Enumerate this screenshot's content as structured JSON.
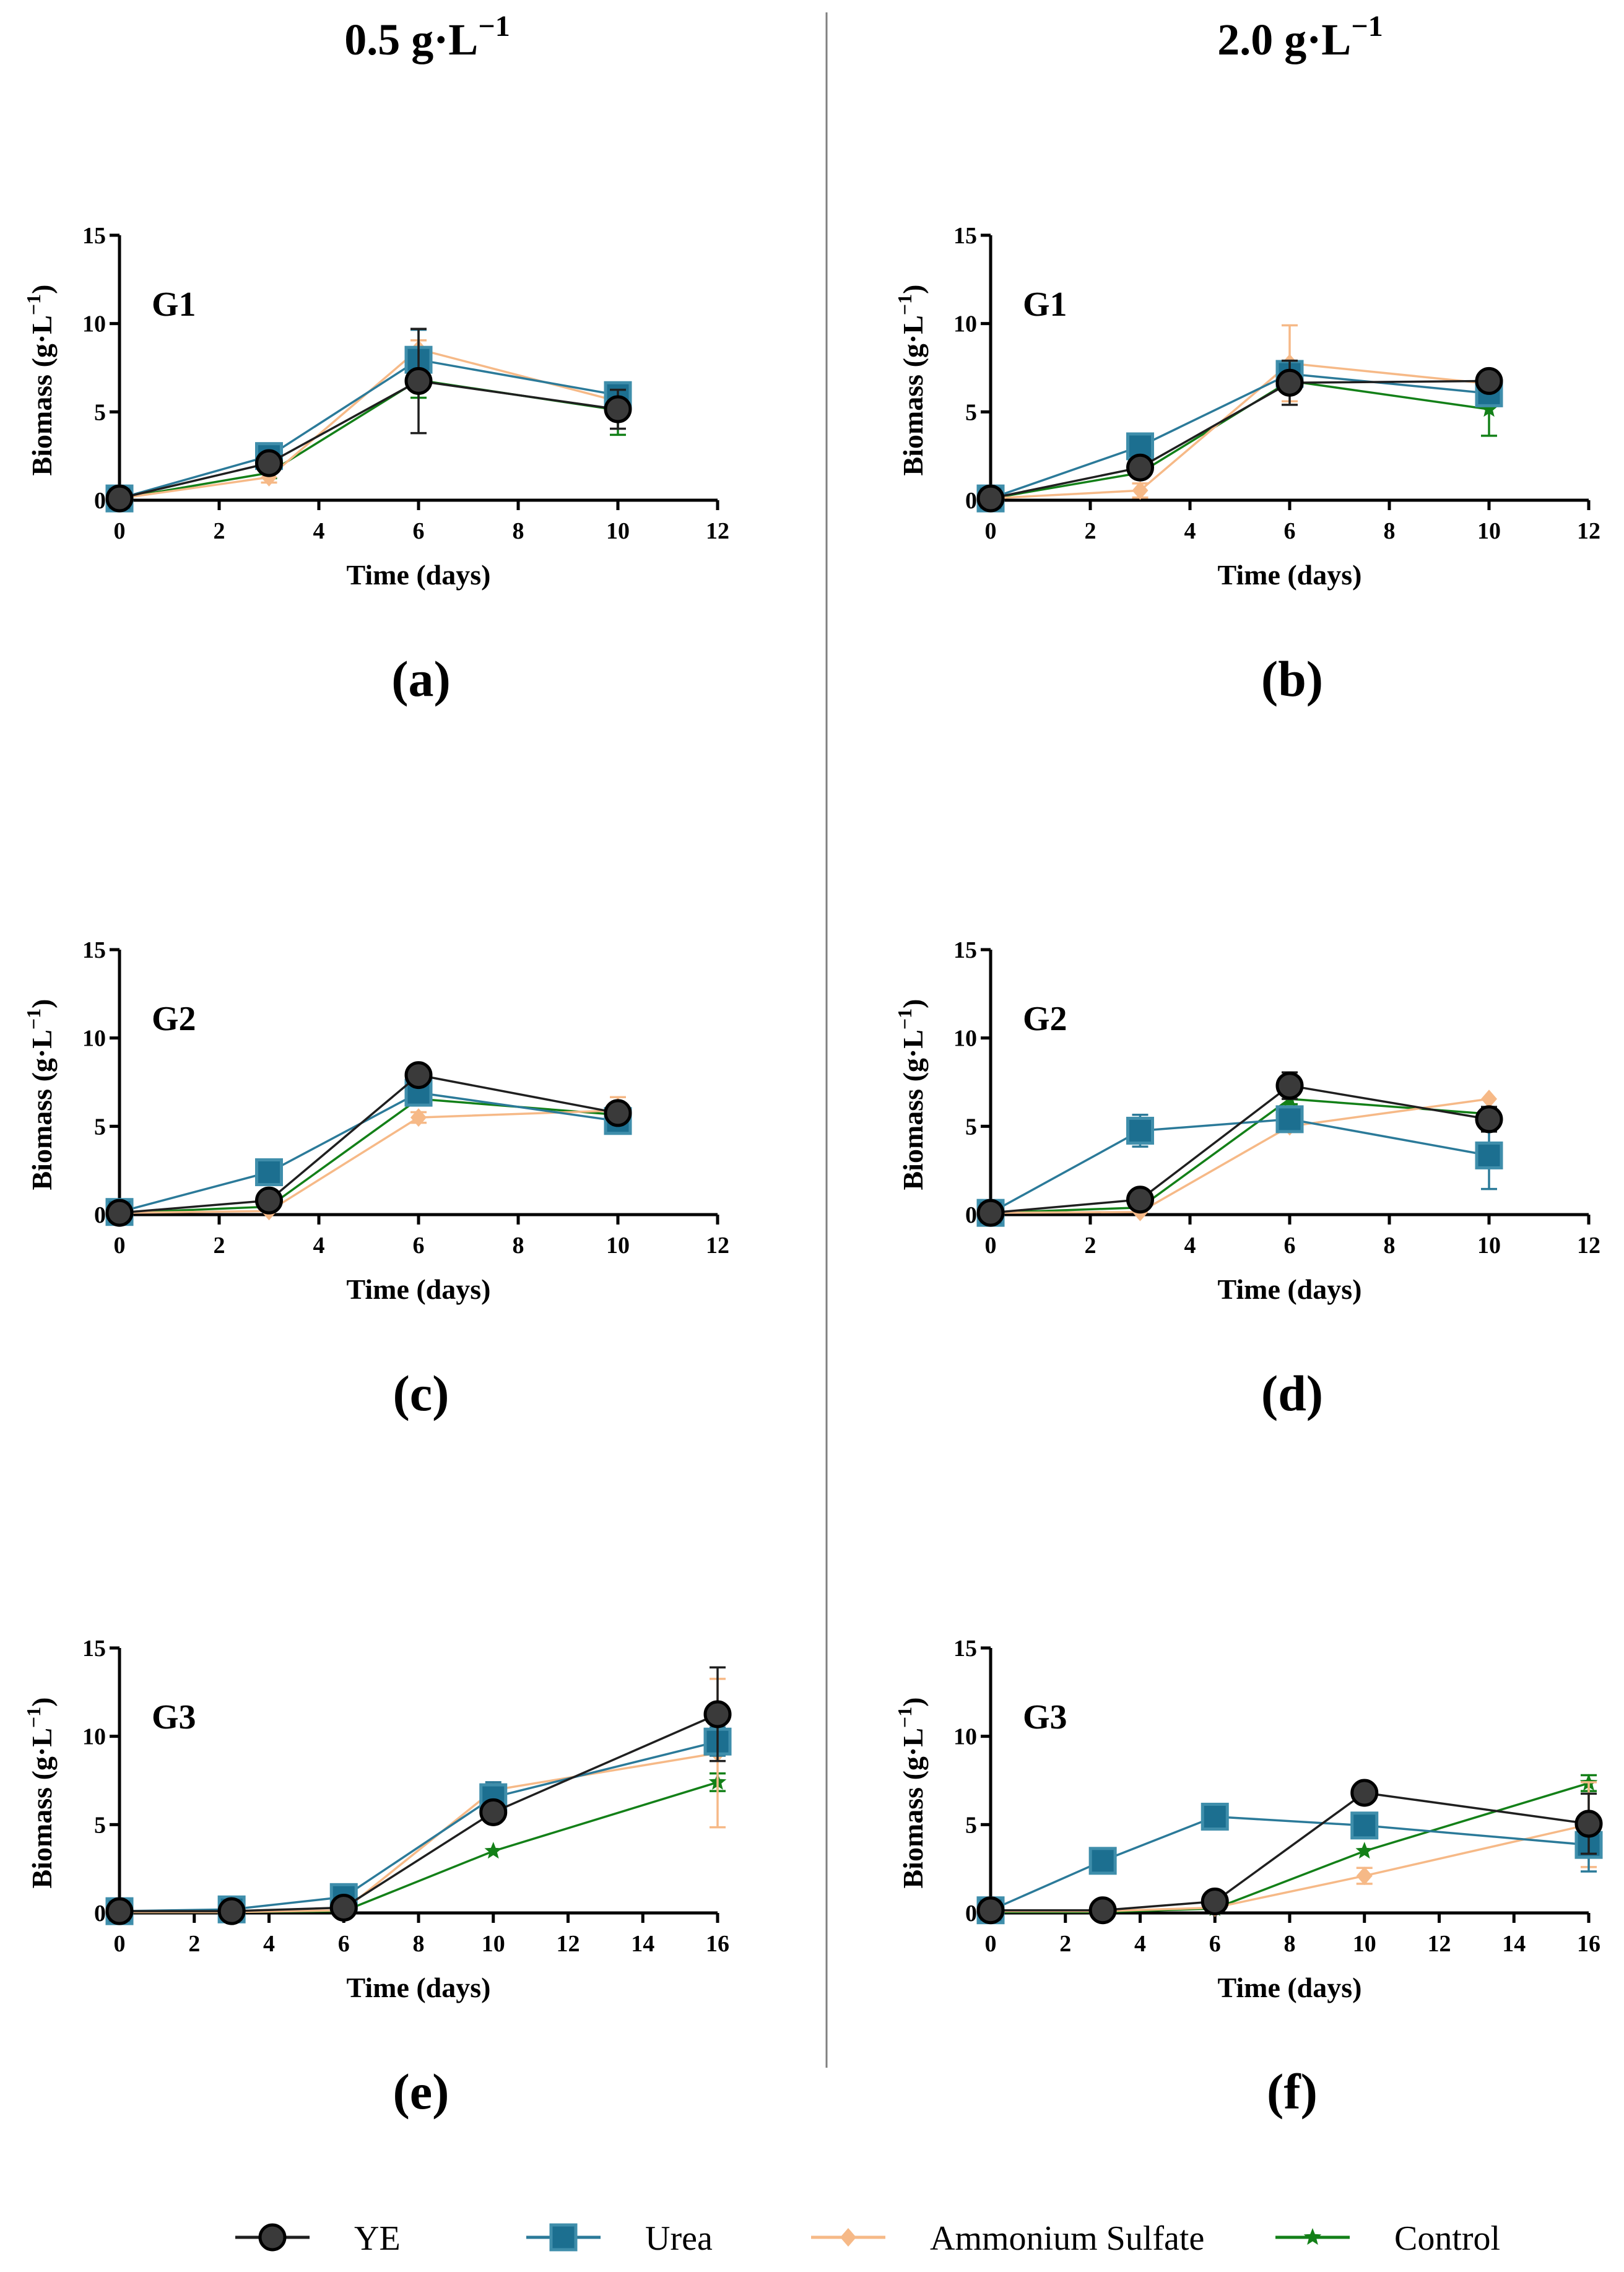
{
  "column_titles": [
    {
      "base": "0.5 g·L",
      "sup": "−1"
    },
    {
      "base": "2.0 g·L",
      "sup": "−1"
    }
  ],
  "legend": [
    {
      "name": "YE",
      "color": "#1f1f1f",
      "marker": "circle-marker-icon"
    },
    {
      "name": "Urea",
      "color": "#2b7a99",
      "marker": "square-marker-icon"
    },
    {
      "name": "Ammonium Sulfate",
      "color": "#f6b987",
      "marker": "diamond-marker-icon"
    },
    {
      "name": "Control",
      "color": "#138018",
      "marker": "star-marker-icon"
    }
  ],
  "chart_data": [
    {
      "type": "line",
      "panel": "(a)",
      "group": "G1",
      "concentration": "0.5 g·L−1",
      "xlabel": "Time (days)",
      "ylabel": {
        "base": "Biomass (g·L",
        "sup": "−1",
        "end": ")"
      },
      "xlim": [
        0,
        12
      ],
      "ylim": [
        0,
        15
      ],
      "xticks": [
        0,
        2,
        4,
        6,
        8,
        10,
        12
      ],
      "yticks": [
        0,
        5,
        10,
        15
      ],
      "x": [
        0,
        3,
        6,
        10
      ],
      "series": [
        {
          "name": "YE",
          "values": [
            0.1,
            2.1,
            6.75,
            5.15
          ],
          "errors": [
            0.05,
            0.5,
            2.95,
            1.1
          ]
        },
        {
          "name": "Urea",
          "values": [
            0.1,
            2.5,
            7.95,
            5.95
          ],
          "errors": [
            0.05,
            0.55,
            1.7,
            0.6
          ]
        },
        {
          "name": "Ammonium Sulfate",
          "values": [
            0.1,
            1.3,
            8.55,
            5.6
          ],
          "errors": [
            0.05,
            0.3,
            0.5,
            0.5
          ]
        },
        {
          "name": "Control",
          "values": [
            0.1,
            1.55,
            6.8,
            5.1
          ],
          "errors": [
            0.05,
            0.3,
            1.0,
            1.4
          ]
        }
      ]
    },
    {
      "type": "line",
      "panel": "(b)",
      "group": "G1",
      "concentration": "2.0 g·L−1",
      "xlabel": "Time (days)",
      "ylabel": {
        "base": "Biomass (g·L",
        "sup": "−1",
        "end": ")"
      },
      "xlim": [
        0,
        12
      ],
      "ylim": [
        0,
        15
      ],
      "xticks": [
        0,
        2,
        4,
        6,
        8,
        10,
        12
      ],
      "yticks": [
        0,
        5,
        10,
        15
      ],
      "x": [
        0,
        3,
        6,
        10
      ],
      "series": [
        {
          "name": "YE",
          "values": [
            0.1,
            1.85,
            6.65,
            6.75
          ],
          "errors": [
            0.05,
            0.15,
            1.25,
            0.2
          ]
        },
        {
          "name": "Urea",
          "values": [
            0.1,
            3.05,
            7.15,
            6.05
          ],
          "errors": [
            0.05,
            0.35,
            0.7,
            0.4
          ]
        },
        {
          "name": "Ammonium Sulfate",
          "values": [
            0.1,
            0.55,
            7.75,
            6.6
          ],
          "errors": [
            0.05,
            0.4,
            2.15,
            0.4
          ]
        },
        {
          "name": "Control",
          "values": [
            0.1,
            1.55,
            6.75,
            5.15
          ],
          "errors": [
            0.05,
            0.2,
            0.5,
            1.5
          ]
        }
      ]
    },
    {
      "type": "line",
      "panel": "(c)",
      "group": "G2",
      "concentration": "0.5 g·L−1",
      "xlabel": "Time (days)",
      "ylabel": {
        "base": "Biomass (g·L",
        "sup": "−1",
        "end": ")"
      },
      "xlim": [
        0,
        12
      ],
      "ylim": [
        0,
        15
      ],
      "xticks": [
        0,
        2,
        4,
        6,
        8,
        10,
        12
      ],
      "yticks": [
        0,
        5,
        10,
        15
      ],
      "x": [
        0,
        3,
        6,
        10
      ],
      "series": [
        {
          "name": "YE",
          "values": [
            0.1,
            0.8,
            7.9,
            5.75
          ],
          "errors": [
            0.05,
            0.15,
            0.2,
            0.2
          ]
        },
        {
          "name": "Urea",
          "values": [
            0.15,
            2.4,
            6.9,
            5.3
          ],
          "errors": [
            0.05,
            0.55,
            0.35,
            0.3
          ]
        },
        {
          "name": "Ammonium Sulfate",
          "values": [
            0.1,
            0.2,
            5.5,
            5.9
          ],
          "errors": [
            0.05,
            0.05,
            0.3,
            0.75
          ]
        },
        {
          "name": "Control",
          "values": [
            0.1,
            0.45,
            6.55,
            5.65
          ],
          "errors": [
            0.05,
            0.1,
            0.3,
            0.3
          ]
        }
      ]
    },
    {
      "type": "line",
      "panel": "(d)",
      "group": "G2",
      "concentration": "2.0 g·L−1",
      "xlabel": "Time (days)",
      "ylabel": {
        "base": "Biomass (g·L",
        "sup": "−1",
        "end": ")"
      },
      "xlim": [
        0,
        12
      ],
      "ylim": [
        0,
        15
      ],
      "xticks": [
        0,
        2,
        4,
        6,
        8,
        10,
        12
      ],
      "yticks": [
        0,
        5,
        10,
        15
      ],
      "x": [
        0,
        3,
        6,
        10
      ],
      "series": [
        {
          "name": "YE",
          "values": [
            0.1,
            0.85,
            7.3,
            5.4
          ],
          "errors": [
            0.05,
            0.35,
            0.75,
            0.7
          ]
        },
        {
          "name": "Urea",
          "values": [
            0.1,
            4.75,
            5.4,
            3.35
          ],
          "errors": [
            0.05,
            0.9,
            0.3,
            1.9
          ]
        },
        {
          "name": "Ammonium Sulfate",
          "values": [
            0.1,
            0.15,
            5.0,
            6.55
          ],
          "errors": [
            0.05,
            0.05,
            0.25,
            0.15
          ]
        },
        {
          "name": "Control",
          "values": [
            0.1,
            0.4,
            6.55,
            5.7
          ],
          "errors": [
            0.05,
            0.1,
            0.3,
            0.3
          ]
        }
      ]
    },
    {
      "type": "line",
      "panel": "(e)",
      "group": "G3",
      "concentration": "0.5 g·L−1",
      "xlabel": "Time (days)",
      "ylabel": {
        "base": "Biomass (g·L",
        "sup": "−1",
        "end": ")"
      },
      "xlim": [
        0,
        16
      ],
      "ylim": [
        0,
        15
      ],
      "xticks": [
        0,
        2,
        4,
        6,
        8,
        10,
        12,
        14,
        16
      ],
      "yticks": [
        0,
        5,
        10,
        15
      ],
      "x": [
        0,
        3,
        6,
        10,
        16
      ],
      "series": [
        {
          "name": "YE",
          "values": [
            0.1,
            0.1,
            0.3,
            5.7,
            11.25
          ],
          "errors": [
            0.05,
            0.05,
            0.1,
            0.2,
            2.65
          ]
        },
        {
          "name": "Urea",
          "values": [
            0.1,
            0.2,
            0.9,
            6.55,
            9.7
          ],
          "errors": [
            0.05,
            0.05,
            0.1,
            0.85,
            0.8
          ]
        },
        {
          "name": "Ammonium Sulfate",
          "values": [
            0.05,
            0.05,
            0.15,
            6.95,
            9.05
          ],
          "errors": [
            0.05,
            0.05,
            0.05,
            0.35,
            4.2
          ]
        },
        {
          "name": "Control",
          "values": [
            0.05,
            0.05,
            0.1,
            3.5,
            7.4
          ],
          "errors": [
            0.05,
            0.05,
            0.05,
            0.1,
            0.5
          ]
        }
      ]
    },
    {
      "type": "line",
      "panel": "(f)",
      "group": "G3",
      "concentration": "2.0 g·L−1",
      "xlabel": "Time (days)",
      "ylabel": {
        "base": "Biomass (g·L",
        "sup": "−1",
        "end": ")"
      },
      "xlim": [
        0,
        16
      ],
      "ylim": [
        0,
        15
      ],
      "xticks": [
        0,
        2,
        4,
        6,
        8,
        10,
        12,
        14,
        16
      ],
      "yticks": [
        0,
        5,
        10,
        15
      ],
      "x": [
        0,
        3,
        6,
        10,
        16
      ],
      "series": [
        {
          "name": "YE",
          "values": [
            0.15,
            0.15,
            0.65,
            6.8,
            5.05
          ],
          "errors": [
            0.05,
            0.05,
            0.1,
            0.15,
            1.7
          ]
        },
        {
          "name": "Urea",
          "values": [
            0.15,
            2.95,
            5.45,
            4.95,
            3.85
          ],
          "errors": [
            0.05,
            0.2,
            0.2,
            0.2,
            1.5
          ]
        },
        {
          "name": "Ammonium Sulfate",
          "values": [
            0.1,
            0.1,
            0.3,
            2.1,
            5.0
          ],
          "errors": [
            0.05,
            0.05,
            0.05,
            0.45,
            2.4
          ]
        },
        {
          "name": "Control",
          "values": [
            0.05,
            0.05,
            0.25,
            3.5,
            7.35
          ],
          "errors": [
            0.05,
            0.05,
            0.05,
            0.1,
            0.45
          ]
        }
      ]
    }
  ]
}
